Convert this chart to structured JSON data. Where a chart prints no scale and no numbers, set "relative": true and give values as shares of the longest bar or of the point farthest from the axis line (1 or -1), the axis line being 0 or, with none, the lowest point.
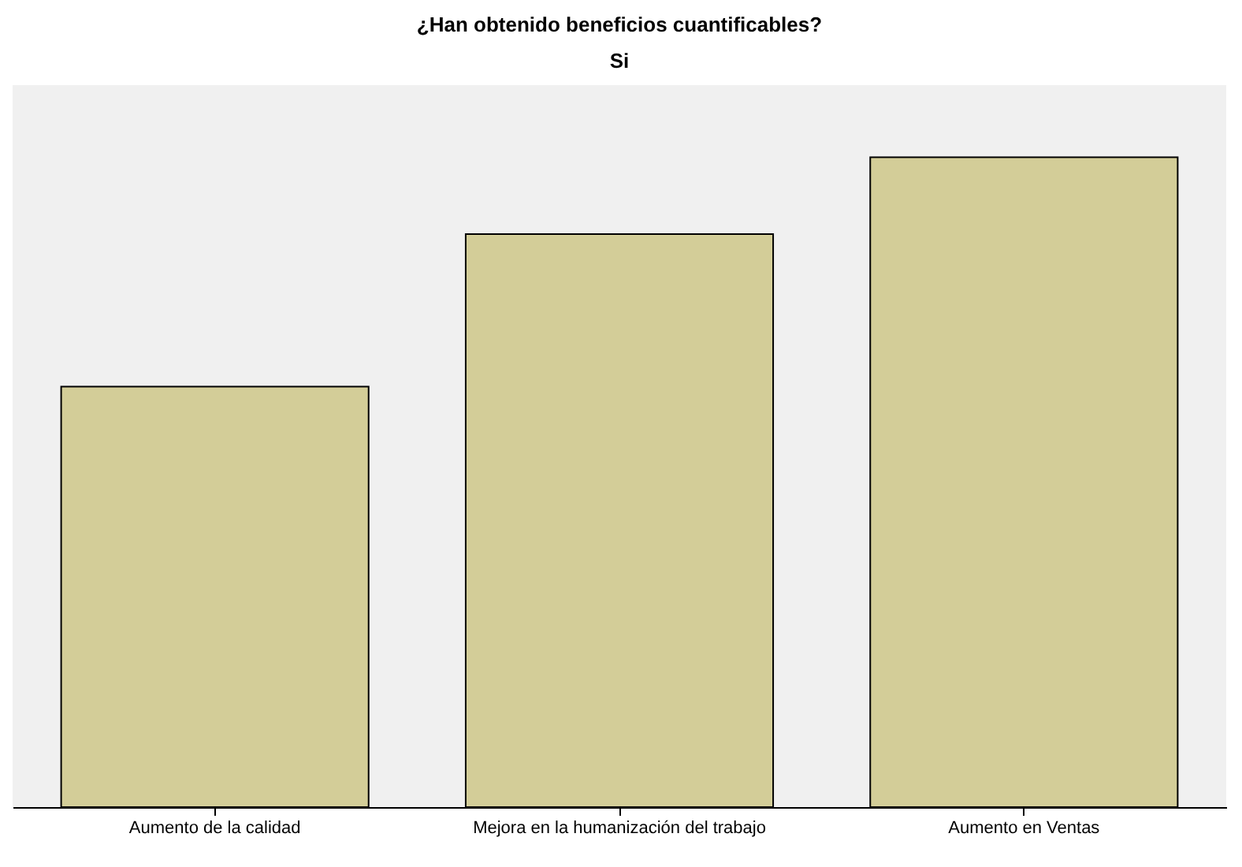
{
  "chart_data": {
    "type": "bar",
    "title": "¿Han obtenido beneficios cuantificables?",
    "subtitle": "Si",
    "relative": true,
    "categories": [
      "Aumento de la calidad",
      "Mejora en la humanización del trabajo",
      "Aumento en Ventas"
    ],
    "values": [
      0.647,
      0.882,
      1
    ],
    "color": "#d3cd98",
    "grid": false
  }
}
